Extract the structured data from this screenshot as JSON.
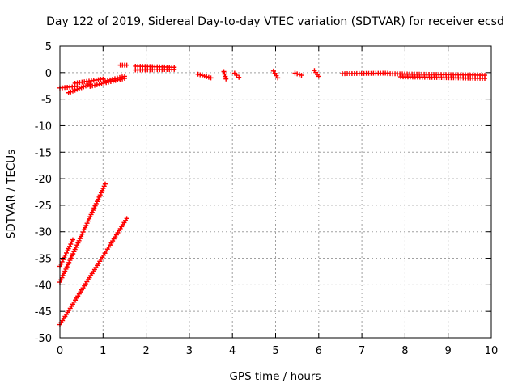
{
  "chart_data": {
    "type": "scatter",
    "title": "Day 122 of 2019, Sidereal Day-to-day VTEC variation (SDTVAR) for receiver ecsd",
    "xlabel": "GPS time / hours",
    "ylabel": "SDTVAR / TECUs",
    "xlim": [
      0,
      10
    ],
    "ylim": [
      -50,
      5
    ],
    "xticks": [
      "0",
      "1",
      "2",
      "3",
      "4",
      "5",
      "6",
      "7",
      "8",
      "9",
      "10"
    ],
    "yticks": [
      "5",
      "0",
      "-5",
      "-10",
      "-15",
      "-20",
      "-25",
      "-30",
      "-35",
      "-40",
      "-45",
      "-50"
    ],
    "grid": true,
    "marker": "+",
    "color": "#ff0000",
    "series": [
      {
        "segments": [
          {
            "x": [
              0.0,
              0.4
            ],
            "y": [
              -2.9,
              -2.6
            ]
          },
          {
            "x": [
              0.2,
              0.7
            ],
            "y": [
              -3.8,
              -2.2
            ]
          },
          {
            "x": [
              0.35,
              1.0
            ],
            "y": [
              -2.0,
              -1.2
            ]
          },
          {
            "x": [
              0.7,
              1.5
            ],
            "y": [
              -2.6,
              -1.1
            ]
          },
          {
            "x": [
              1.05,
              1.5
            ],
            "y": [
              -1.6,
              -0.7
            ]
          },
          {
            "x": [
              1.4,
              1.55
            ],
            "y": [
              1.4,
              1.4
            ]
          },
          {
            "x": [
              1.75,
              2.65
            ],
            "y": [
              1.2,
              1.0
            ]
          },
          {
            "x": [
              1.75,
              2.65
            ],
            "y": [
              0.5,
              0.6
            ]
          },
          {
            "x": [
              3.2,
              3.5
            ],
            "y": [
              -0.3,
              -1.0
            ]
          },
          {
            "x": [
              3.8,
              3.85
            ],
            "y": [
              0.2,
              -1.2
            ]
          },
          {
            "x": [
              4.05,
              4.15
            ],
            "y": [
              -0.1,
              -0.9
            ]
          },
          {
            "x": [
              4.95,
              5.05
            ],
            "y": [
              0.3,
              -1.0
            ]
          },
          {
            "x": [
              5.45,
              5.6
            ],
            "y": [
              -0.1,
              -0.5
            ]
          },
          {
            "x": [
              5.9,
              6.0
            ],
            "y": [
              0.4,
              -0.7
            ]
          },
          {
            "x": [
              6.55,
              7.6
            ],
            "y": [
              -0.2,
              -0.1
            ]
          },
          {
            "x": [
              7.6,
              9.85
            ],
            "y": [
              -0.2,
              -0.5
            ]
          },
          {
            "x": [
              7.9,
              9.85
            ],
            "y": [
              -0.8,
              -1.1
            ]
          },
          {
            "x": [
              0.0,
              0.3
            ],
            "y": [
              -36.5,
              -31.5
            ]
          },
          {
            "x": [
              0.0,
              1.05
            ],
            "y": [
              -39.5,
              -21.0
            ]
          },
          {
            "x": [
              0.0,
              1.55
            ],
            "y": [
              -47.5,
              -27.5
            ]
          }
        ]
      }
    ]
  }
}
